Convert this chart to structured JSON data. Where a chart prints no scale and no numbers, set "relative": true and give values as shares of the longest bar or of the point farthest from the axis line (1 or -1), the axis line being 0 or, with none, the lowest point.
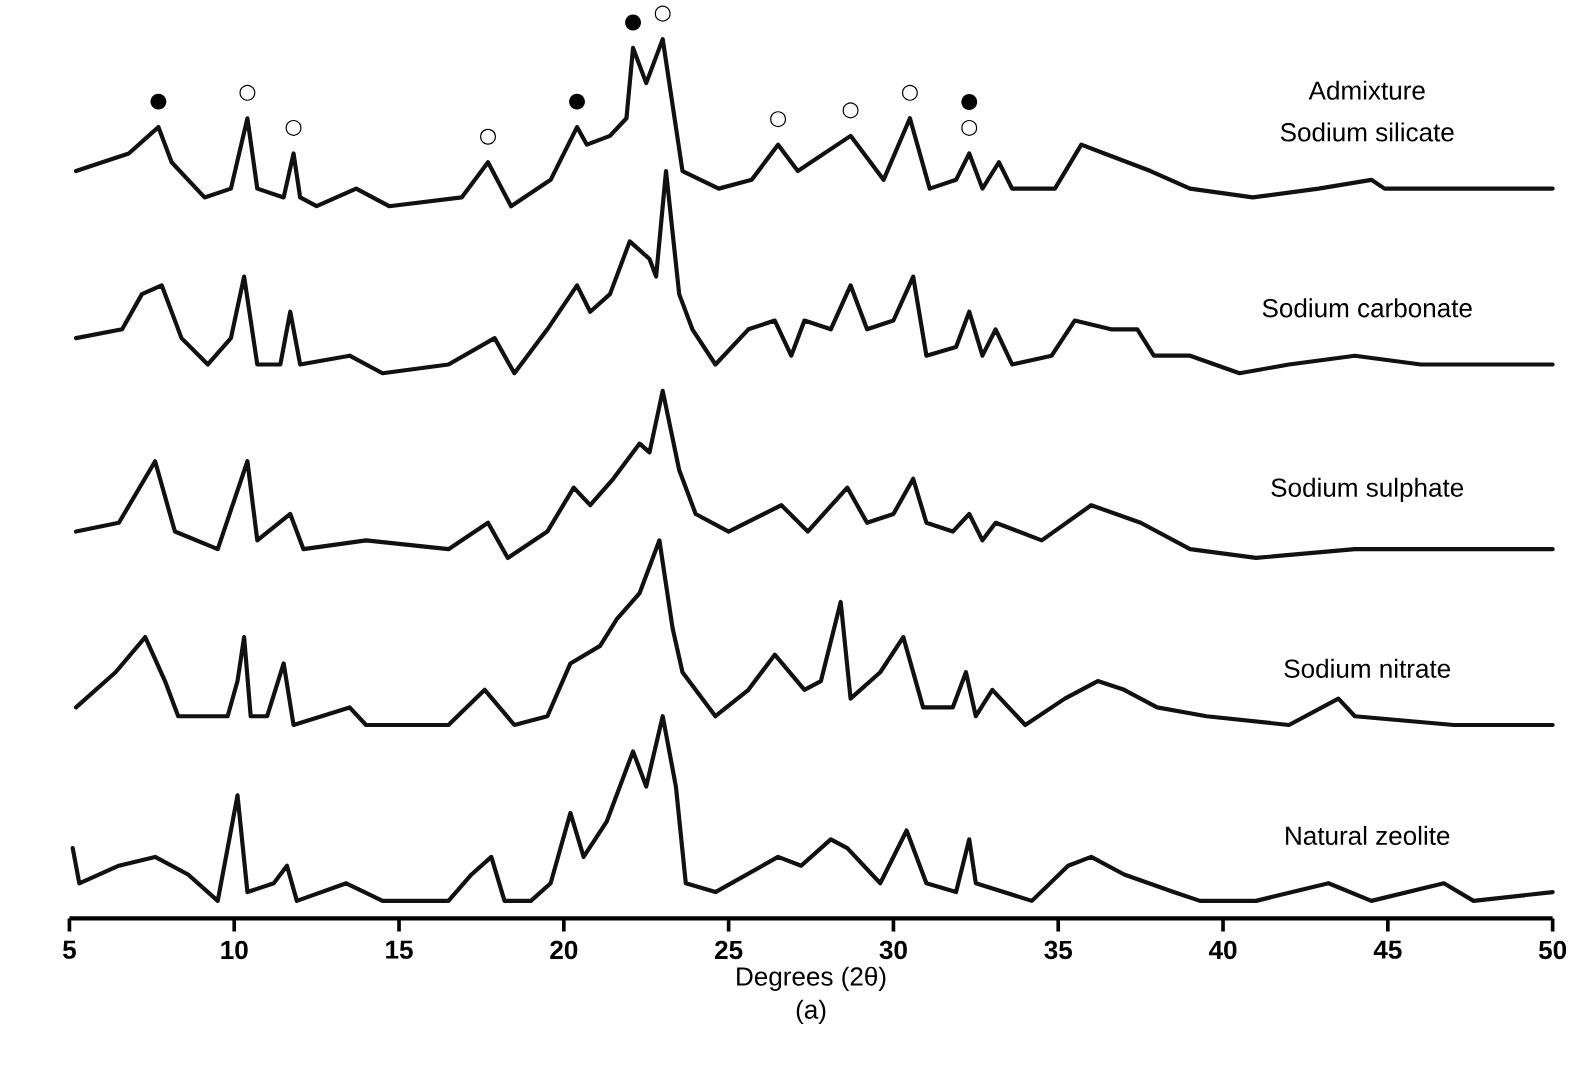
{
  "chart_data": {
    "type": "line",
    "relative": true,
    "xlabel": "Degrees (2θ)",
    "xlim": [
      5,
      50
    ],
    "xticks": [
      5,
      10,
      15,
      20,
      25,
      30,
      35,
      40,
      45,
      50
    ],
    "marker": "none",
    "line_style": "solid",
    "series": [
      {
        "name": "Sodium silicate",
        "color": "#111111",
        "x": [
          5.2,
          6.8,
          7.7,
          8.1,
          9.1,
          9.9,
          10.4,
          10.7,
          11.5,
          11.8,
          12.0,
          12.5,
          13.7,
          14.7,
          16.9,
          17.7,
          18.4,
          19.6,
          20.4,
          20.7,
          21.4,
          21.9,
          22.1,
          22.5,
          23.0,
          23.6,
          24.7,
          25.7,
          26.5,
          27.1,
          28.7,
          29.7,
          30.5,
          31.1,
          31.9,
          32.3,
          32.7,
          33.2,
          33.6,
          34.9,
          35.7,
          36.4,
          37.8,
          39.0,
          40.9,
          42.9,
          44.5,
          44.9,
          46.8,
          48.9,
          50.0
        ],
        "values": [
          0.85,
          0.87,
          0.9,
          0.86,
          0.82,
          0.83,
          0.91,
          0.83,
          0.82,
          0.87,
          0.82,
          0.81,
          0.83,
          0.81,
          0.82,
          0.86,
          0.81,
          0.84,
          0.9,
          0.88,
          0.89,
          0.91,
          0.99,
          0.95,
          1,
          0.85,
          0.83,
          0.84,
          0.88,
          0.85,
          0.89,
          0.84,
          0.91,
          0.83,
          0.84,
          0.87,
          0.83,
          0.86,
          0.83,
          0.83,
          0.88,
          0.87,
          0.85,
          0.83,
          0.82,
          0.83,
          0.84,
          0.83,
          0.83,
          0.83,
          0.83
        ]
      },
      {
        "name": "Sodium carbonate",
        "color": "#111111",
        "x": [
          5.2,
          6.6,
          7.2,
          7.8,
          8.4,
          9.2,
          9.9,
          10.3,
          10.7,
          11.4,
          11.7,
          12.0,
          13.5,
          14.5,
          16.5,
          17.9,
          18.5,
          19.5,
          20.4,
          20.8,
          21.4,
          22.0,
          22.6,
          22.8,
          23.1,
          23.5,
          23.9,
          24.6,
          25.6,
          26.4,
          26.9,
          27.3,
          28.1,
          28.7,
          29.2,
          30.0,
          30.6,
          31.0,
          31.9,
          32.3,
          32.7,
          33.1,
          33.6,
          34.8,
          35.5,
          36.6,
          37.4,
          37.9,
          39.0,
          40.5,
          42.0,
          44.0,
          46.0,
          48.0,
          50.0
        ],
        "values": [
          0.66,
          0.67,
          0.71,
          0.72,
          0.66,
          0.63,
          0.66,
          0.73,
          0.63,
          0.63,
          0.69,
          0.63,
          0.64,
          0.62,
          0.63,
          0.66,
          0.62,
          0.67,
          0.72,
          0.69,
          0.71,
          0.77,
          0.75,
          0.73,
          0.85,
          0.71,
          0.67,
          0.63,
          0.67,
          0.68,
          0.64,
          0.68,
          0.67,
          0.72,
          0.67,
          0.68,
          0.73,
          0.64,
          0.65,
          0.69,
          0.64,
          0.67,
          0.63,
          0.64,
          0.68,
          0.67,
          0.67,
          0.64,
          0.64,
          0.62,
          0.63,
          0.64,
          0.63,
          0.63,
          0.63
        ]
      },
      {
        "name": "Sodium sulphate",
        "color": "#111111",
        "x": [
          5.2,
          6.5,
          7.6,
          8.2,
          9.5,
          10.4,
          10.7,
          11.7,
          12.1,
          14.0,
          16.5,
          17.7,
          18.3,
          19.5,
          20.3,
          20.8,
          21.5,
          22.3,
          22.6,
          23.0,
          23.5,
          24.0,
          25.0,
          26.6,
          27.4,
          28.6,
          29.2,
          30.0,
          30.6,
          31.0,
          31.8,
          32.3,
          32.7,
          33.1,
          34.5,
          36.0,
          37.5,
          39.0,
          41.0,
          44.0,
          47.0,
          50.0
        ],
        "values": [
          0.44,
          0.45,
          0.52,
          0.44,
          0.42,
          0.52,
          0.43,
          0.46,
          0.42,
          0.43,
          0.42,
          0.45,
          0.41,
          0.44,
          0.49,
          0.47,
          0.5,
          0.54,
          0.53,
          0.6,
          0.51,
          0.46,
          0.44,
          0.47,
          0.44,
          0.49,
          0.45,
          0.46,
          0.5,
          0.45,
          0.44,
          0.46,
          0.43,
          0.45,
          0.43,
          0.47,
          0.45,
          0.42,
          0.41,
          0.42,
          0.42,
          0.42
        ]
      },
      {
        "name": "Sodium nitrate",
        "color": "#111111",
        "x": [
          5.2,
          6.4,
          7.3,
          7.9,
          8.3,
          9.8,
          10.1,
          10.3,
          10.5,
          11.0,
          11.5,
          11.8,
          13.5,
          14.0,
          16.5,
          17.6,
          18.5,
          19.5,
          20.2,
          21.1,
          21.6,
          22.3,
          22.9,
          23.3,
          23.6,
          24.6,
          25.6,
          26.4,
          27.3,
          27.8,
          28.4,
          28.7,
          29.6,
          30.3,
          30.9,
          31.8,
          32.2,
          32.5,
          33.0,
          34.0,
          35.2,
          36.2,
          37.0,
          38.0,
          39.5,
          42.0,
          43.5,
          44.0,
          47.0,
          50.0
        ],
        "values": [
          0.24,
          0.28,
          0.32,
          0.27,
          0.23,
          0.23,
          0.27,
          0.32,
          0.23,
          0.23,
          0.29,
          0.22,
          0.24,
          0.22,
          0.22,
          0.26,
          0.22,
          0.23,
          0.29,
          0.31,
          0.34,
          0.37,
          0.43,
          0.33,
          0.28,
          0.23,
          0.26,
          0.3,
          0.26,
          0.27,
          0.36,
          0.25,
          0.28,
          0.32,
          0.24,
          0.24,
          0.28,
          0.23,
          0.26,
          0.22,
          0.25,
          0.27,
          0.26,
          0.24,
          0.23,
          0.22,
          0.25,
          0.23,
          0.22,
          0.22
        ]
      },
      {
        "name": "Natural zeolite",
        "color": "#111111",
        "x": [
          5.1,
          5.3,
          6.5,
          7.6,
          8.6,
          9.5,
          10.1,
          10.4,
          11.2,
          11.6,
          11.9,
          13.4,
          14.5,
          16.5,
          17.2,
          17.8,
          18.2,
          19.0,
          19.6,
          20.2,
          20.6,
          21.3,
          22.1,
          22.5,
          23.0,
          23.4,
          23.7,
          24.6,
          26.5,
          27.2,
          28.1,
          28.6,
          29.6,
          30.4,
          31.0,
          31.9,
          32.3,
          32.5,
          34.2,
          35.3,
          36.0,
          37.0,
          38.5,
          39.3,
          41.0,
          43.2,
          44.5,
          46.7,
          47.6,
          50.0
        ],
        "values": [
          0.08,
          0.04,
          0.06,
          0.07,
          0.05,
          0.02,
          0.14,
          0.03,
          0.04,
          0.06,
          0.02,
          0.04,
          0.02,
          0.02,
          0.05,
          0.07,
          0.02,
          0.02,
          0.04,
          0.12,
          0.07,
          0.11,
          0.19,
          0.15,
          0.23,
          0.15,
          0.04,
          0.03,
          0.07,
          0.06,
          0.09,
          0.08,
          0.04,
          0.1,
          0.04,
          0.03,
          0.09,
          0.04,
          0.02,
          0.06,
          0.07,
          0.05,
          0.03,
          0.02,
          0.02,
          0.04,
          0.02,
          0.04,
          0.02,
          0.03
        ]
      }
    ],
    "annotations": [
      "Admixture",
      "(a)",
      {
        "text": "●",
        "x": 7.7,
        "y": 0.9
      },
      {
        "text": "○",
        "x": 10.4,
        "y": 0.91
      },
      {
        "text": "○",
        "x": 11.8,
        "y": 0.87
      },
      {
        "text": "○",
        "x": 17.7,
        "y": 0.86
      },
      {
        "text": "●",
        "x": 20.4,
        "y": 0.9
      },
      {
        "text": "●",
        "x": 22.1,
        "y": 0.99
      },
      {
        "text": "○",
        "x": 23.0,
        "y": 1
      },
      {
        "text": "○",
        "x": 26.5,
        "y": 0.88
      },
      {
        "text": "○",
        "x": 28.7,
        "y": 0.89
      },
      {
        "text": "○",
        "x": 30.5,
        "y": 0.91
      },
      {
        "text": "○",
        "x": 32.3,
        "y": 0.87
      },
      {
        "text": "●",
        "x": 32.3,
        "y": 0.87
      }
    ]
  }
}
